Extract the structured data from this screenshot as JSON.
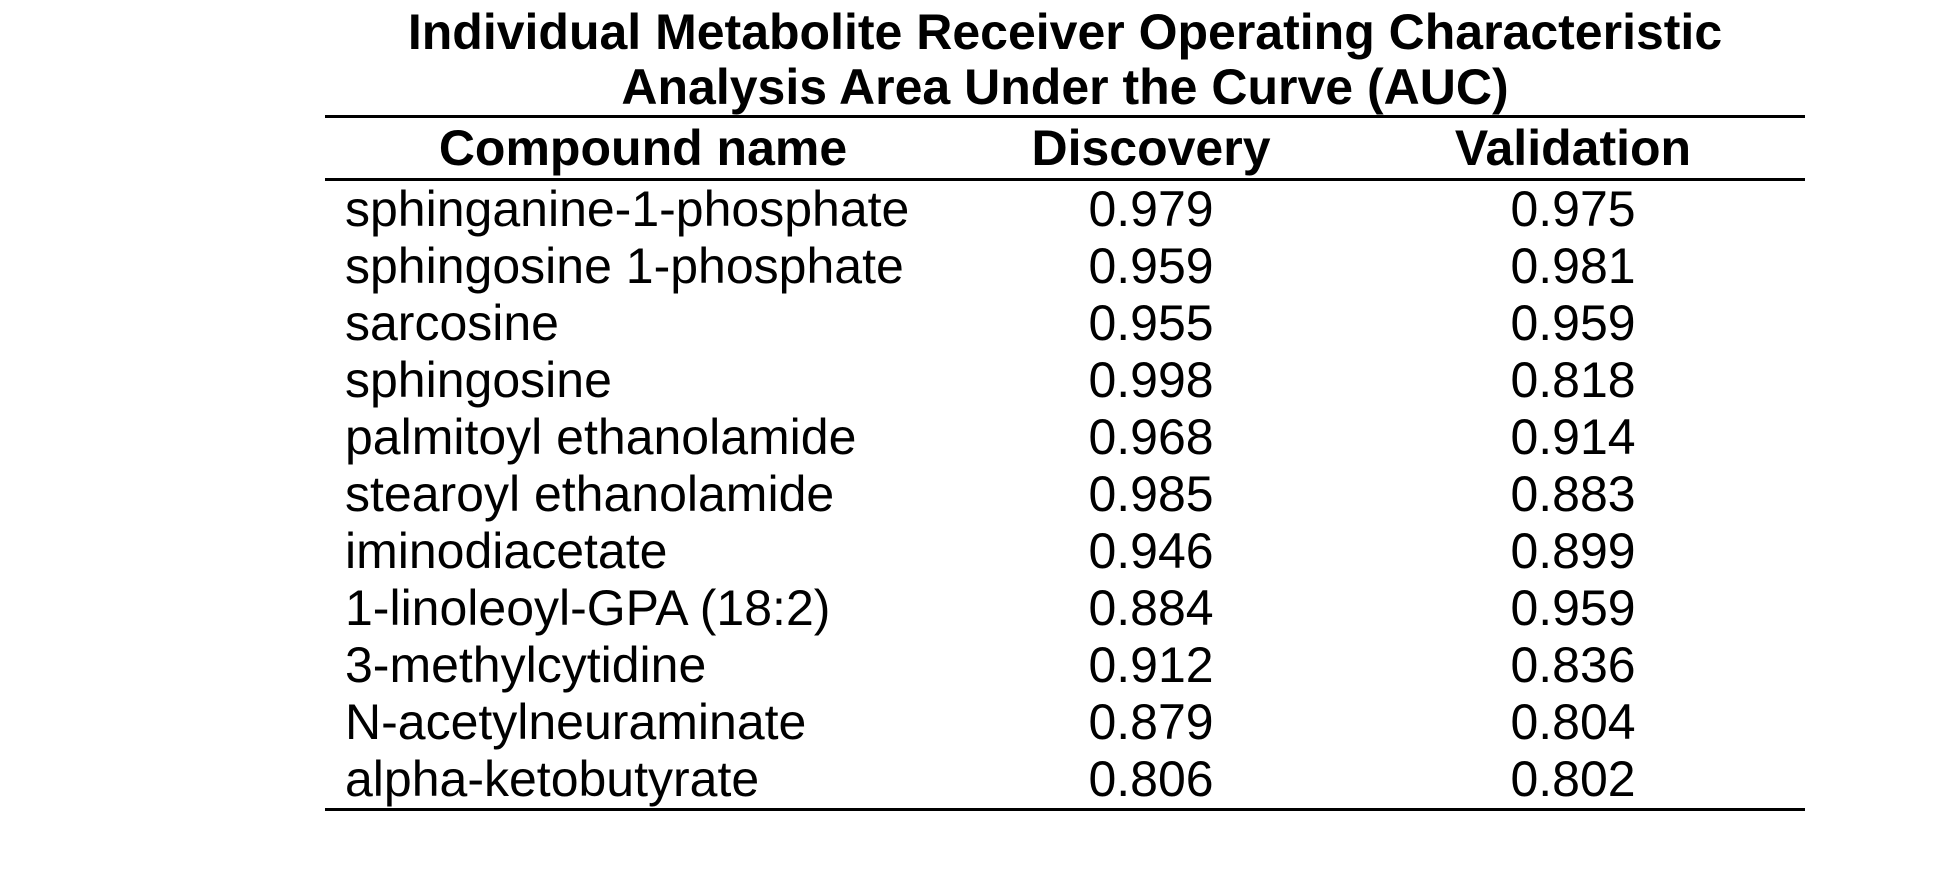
{
  "title": {
    "line1": "Individual Metabolite Receiver Operating Characteristic",
    "line2": "Analysis Area Under the Curve (AUC)"
  },
  "table": {
    "headers": [
      "Compound name",
      "Discovery",
      "Validation"
    ],
    "rows": [
      {
        "compound": "sphinganine-1-phosphate",
        "discovery": "0.979",
        "validation": "0.975"
      },
      {
        "compound": "sphingosine 1-phosphate",
        "discovery": "0.959",
        "validation": "0.981"
      },
      {
        "compound": "sarcosine",
        "discovery": "0.955",
        "validation": "0.959"
      },
      {
        "compound": "sphingosine",
        "discovery": "0.998",
        "validation": "0.818"
      },
      {
        "compound": "palmitoyl ethanolamide",
        "discovery": "0.968",
        "validation": "0.914"
      },
      {
        "compound": "stearoyl ethanolamide",
        "discovery": "0.985",
        "validation": "0.883"
      },
      {
        "compound": "iminodiacetate",
        "discovery": "0.946",
        "validation": "0.899"
      },
      {
        "compound": "1-linoleoyl-GPA (18:2)",
        "discovery": "0.884",
        "validation": "0.959"
      },
      {
        "compound": "3-methylcytidine",
        "discovery": "0.912",
        "validation": "0.836"
      },
      {
        "compound": "N-acetylneuraminate",
        "discovery": "0.879",
        "validation": "0.804"
      },
      {
        "compound": "alpha-ketobutyrate",
        "discovery": "0.806",
        "validation": "0.802"
      }
    ]
  },
  "colors": {
    "background": "#ffffff",
    "text": "#000000",
    "rule": "#000000"
  }
}
